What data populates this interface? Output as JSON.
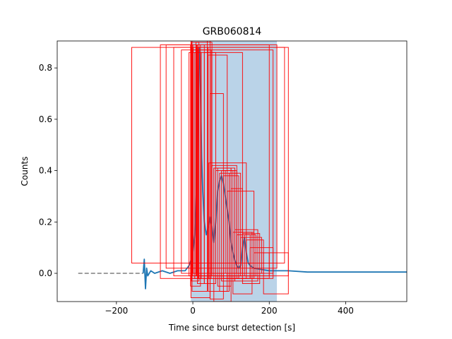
{
  "chart_data": {
    "type": "line",
    "title": "GRB060814",
    "xlabel": "Time since burst detection [s]",
    "ylabel": "Counts",
    "xlim": [
      -355,
      560
    ],
    "ylim": [
      -0.11,
      0.905
    ],
    "xticks": [
      -200,
      0,
      200,
      400
    ],
    "yticks": [
      0.0,
      0.2,
      0.4,
      0.6,
      0.8
    ],
    "xtick_labels": [
      "−200",
      "0",
      "200",
      "400"
    ],
    "ytick_labels": [
      "0.0",
      "0.2",
      "0.4",
      "0.6",
      "0.8"
    ],
    "grid": false,
    "legend": "none",
    "shaded_interval": {
      "x": [
        -5,
        220
      ],
      "color": "#bad3e8"
    },
    "dashed_baseline": {
      "x": [
        -300,
        -130
      ],
      "y": 0.0,
      "color": "#7f7f7f"
    },
    "lightcurve": {
      "color": "#1f77b4",
      "x": [
        -130,
        -127,
        -124,
        -121,
        -118,
        -110,
        -100,
        -80,
        -60,
        -40,
        -20,
        -10,
        -5,
        0,
        5,
        10,
        14,
        17,
        20,
        23,
        26,
        30,
        35,
        40,
        45,
        50,
        55,
        60,
        65,
        70,
        75,
        80,
        85,
        90,
        95,
        100,
        105,
        110,
        115,
        120,
        125,
        130,
        135,
        140,
        145,
        150,
        160,
        180,
        200,
        250,
        300,
        350,
        400,
        450,
        500,
        560
      ],
      "y": [
        0.0,
        0.055,
        -0.06,
        0.02,
        -0.01,
        0.01,
        0.0,
        0.01,
        0.0,
        0.01,
        0.01,
        0.03,
        0.05,
        0.08,
        0.15,
        0.35,
        0.75,
        0.88,
        0.7,
        0.45,
        0.32,
        0.2,
        0.15,
        0.18,
        0.22,
        0.18,
        0.12,
        0.2,
        0.32,
        0.36,
        0.38,
        0.35,
        0.3,
        0.25,
        0.2,
        0.12,
        0.08,
        0.05,
        0.03,
        0.02,
        0.03,
        0.1,
        0.14,
        0.08,
        0.04,
        0.03,
        0.02,
        0.015,
        0.01,
        0.01,
        0.005,
        0.005,
        0.005,
        0.005,
        0.005,
        0.005
      ]
    },
    "boxes": {
      "color": "#ff0000",
      "items": [
        {
          "x": [
            -160,
            240
          ],
          "y": [
            0.04,
            0.88
          ]
        },
        {
          "x": [
            -85,
            200
          ],
          "y": [
            -0.02,
            0.89
          ]
        },
        {
          "x": [
            -70,
            220
          ],
          "y": [
            0.02,
            0.89
          ]
        },
        {
          "x": [
            -50,
            250
          ],
          "y": [
            -0.01,
            0.88
          ]
        },
        {
          "x": [
            -30,
            210
          ],
          "y": [
            0.0,
            0.87
          ]
        },
        {
          "x": [
            -10,
            130
          ],
          "y": [
            -0.01,
            0.86
          ]
        },
        {
          "x": [
            -5,
            45
          ],
          "y": [
            -0.095,
            0.93
          ]
        },
        {
          "x": [
            -2,
            38
          ],
          "y": [
            -0.07,
            0.97
          ]
        },
        {
          "x": [
            -6,
            20
          ],
          "y": [
            -0.05,
            0.89
          ]
        },
        {
          "x": [
            -4,
            16
          ],
          "y": [
            -0.03,
            0.9
          ]
        },
        {
          "x": [
            -3,
            14
          ],
          "y": [
            -0.02,
            0.88
          ]
        },
        {
          "x": [
            -1,
            12
          ],
          "y": [
            0.0,
            0.87
          ]
        },
        {
          "x": [
            0,
            10
          ],
          "y": [
            -0.01,
            0.89
          ]
        },
        {
          "x": [
            1,
            8
          ],
          "y": [
            0.0,
            0.88
          ]
        },
        {
          "x": [
            5,
            22
          ],
          "y": [
            -0.02,
            0.86
          ]
        },
        {
          "x": [
            8,
            50
          ],
          "y": [
            -0.01,
            0.9
          ]
        },
        {
          "x": [
            10,
            40
          ],
          "y": [
            0.0,
            0.88
          ]
        },
        {
          "x": [
            12,
            30
          ],
          "y": [
            -0.04,
            0.89
          ]
        },
        {
          "x": [
            15,
            48
          ],
          "y": [
            -0.02,
            0.87
          ]
        },
        {
          "x": [
            30,
            60
          ],
          "y": [
            -0.04,
            0.86
          ]
        },
        {
          "x": [
            40,
            90
          ],
          "y": [
            -0.07,
            0.85
          ]
        },
        {
          "x": [
            45,
            80
          ],
          "y": [
            -0.1,
            0.7
          ]
        },
        {
          "x": [
            55,
            100
          ],
          "y": [
            -0.11,
            0.41
          ]
        },
        {
          "x": [
            42,
            140
          ],
          "y": [
            -0.02,
            0.43
          ]
        },
        {
          "x": [
            50,
            115
          ],
          "y": [
            0.0,
            0.42
          ]
        },
        {
          "x": [
            55,
            110
          ],
          "y": [
            -0.01,
            0.41
          ]
        },
        {
          "x": [
            60,
            105
          ],
          "y": [
            0.0,
            0.4
          ]
        },
        {
          "x": [
            65,
            100
          ],
          "y": [
            -0.05,
            0.41
          ]
        },
        {
          "x": [
            70,
            95
          ],
          "y": [
            -0.07,
            0.39
          ]
        },
        {
          "x": [
            75,
            110
          ],
          "y": [
            -0.03,
            0.4
          ]
        },
        {
          "x": [
            80,
            120
          ],
          "y": [
            -0.02,
            0.38
          ]
        },
        {
          "x": [
            85,
            115
          ],
          "y": [
            0.0,
            0.4
          ]
        },
        {
          "x": [
            90,
            160
          ],
          "y": [
            -0.02,
            0.32
          ]
        },
        {
          "x": [
            95,
            125
          ],
          "y": [
            -0.01,
            0.39
          ]
        },
        {
          "x": [
            100,
            130
          ],
          "y": [
            0.0,
            0.33
          ]
        },
        {
          "x": [
            105,
            155
          ],
          "y": [
            -0.08,
            0.16
          ]
        },
        {
          "x": [
            110,
            170
          ],
          "y": [
            -0.03,
            0.17
          ]
        },
        {
          "x": [
            115,
            150
          ],
          "y": [
            -0.02,
            0.15
          ]
        },
        {
          "x": [
            120,
            160
          ],
          "y": [
            -0.01,
            0.16
          ]
        },
        {
          "x": [
            125,
            180
          ],
          "y": [
            0.0,
            0.14
          ]
        },
        {
          "x": [
            130,
            175
          ],
          "y": [
            -0.04,
            0.155
          ]
        },
        {
          "x": [
            135,
            165
          ],
          "y": [
            -0.01,
            0.15
          ]
        },
        {
          "x": [
            140,
            185
          ],
          "y": [
            0.0,
            0.13
          ]
        },
        {
          "x": [
            150,
            210
          ],
          "y": [
            -0.02,
            0.1
          ]
        },
        {
          "x": [
            160,
            200
          ],
          "y": [
            -0.01,
            0.08
          ]
        },
        {
          "x": [
            185,
            250
          ],
          "y": [
            -0.08,
            0.08
          ]
        }
      ]
    }
  }
}
